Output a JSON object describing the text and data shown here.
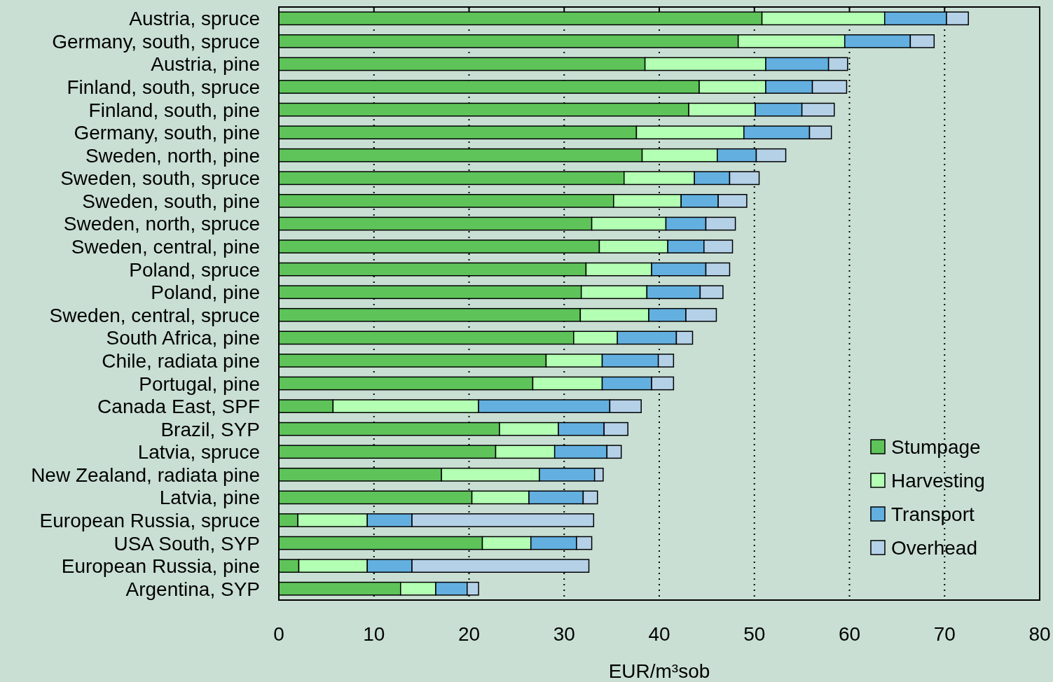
{
  "chart_data": {
    "type": "bar",
    "orientation": "horizontal",
    "stacked": true,
    "xlabel": "EUR/m³sob",
    "categories": [
      "Austria, spruce",
      "Germany, south, spruce",
      "Austria, pine",
      "Finland, south, spruce",
      "Finland, south, pine",
      "Germany, south, pine",
      "Sweden, north, pine",
      "Sweden, south, spruce",
      "Sweden, south, pine",
      "Sweden, north, spruce",
      "Sweden, central, pine",
      "Poland, spruce",
      "Poland, pine",
      "Sweden, central, spruce",
      "South Africa, pine",
      "Chile, radiata pine",
      "Portugal, pine",
      "Canada East, SPF",
      "Brazil, SYP",
      "Latvia, spruce",
      "New Zealand, radiata pine",
      "Latvia, pine",
      "European Russia, spruce",
      "USA South, SYP",
      "European Russia, pine",
      "Argentina, SYP"
    ],
    "series": [
      {
        "name": "Stumpage",
        "color": "#5ec45a",
        "values": [
          50.8,
          48.3,
          38.5,
          44.2,
          43.1,
          37.6,
          38.2,
          36.3,
          35.2,
          32.9,
          33.7,
          32.3,
          31.8,
          31.7,
          31.0,
          28.1,
          26.7,
          5.7,
          23.2,
          22.8,
          17.1,
          20.3,
          2.0,
          21.4,
          2.1,
          12.8
        ]
      },
      {
        "name": "Harvesting",
        "color": "#b3ffb3",
        "values": [
          12.9,
          11.2,
          12.7,
          7.0,
          7.0,
          11.3,
          7.9,
          7.4,
          7.1,
          7.8,
          7.2,
          6.9,
          6.9,
          7.2,
          4.6,
          5.9,
          7.3,
          15.3,
          6.2,
          6.2,
          10.3,
          6.0,
          7.3,
          5.1,
          7.2,
          3.7
        ]
      },
      {
        "name": "Transport",
        "color": "#63b0e0",
        "values": [
          6.5,
          6.9,
          6.6,
          4.9,
          4.9,
          6.9,
          4.1,
          3.7,
          3.9,
          4.2,
          3.8,
          5.7,
          5.6,
          3.9,
          6.2,
          5.9,
          5.2,
          13.8,
          4.8,
          5.5,
          5.8,
          5.7,
          4.7,
          4.8,
          4.7,
          3.3
        ]
      },
      {
        "name": "Overhead",
        "color": "#b5d1e8",
        "values": [
          2.3,
          2.5,
          2.0,
          3.6,
          3.4,
          2.3,
          3.1,
          3.1,
          3.0,
          3.1,
          3.0,
          2.5,
          2.4,
          3.2,
          1.7,
          1.6,
          2.3,
          3.3,
          2.5,
          1.5,
          0.9,
          1.5,
          19.1,
          1.6,
          18.6,
          1.2
        ]
      }
    ],
    "xlim": [
      0,
      80
    ],
    "xticks": [
      0,
      10,
      20,
      30,
      40,
      50,
      60,
      70,
      80
    ],
    "grid": "x",
    "legend": "bottom right"
  }
}
